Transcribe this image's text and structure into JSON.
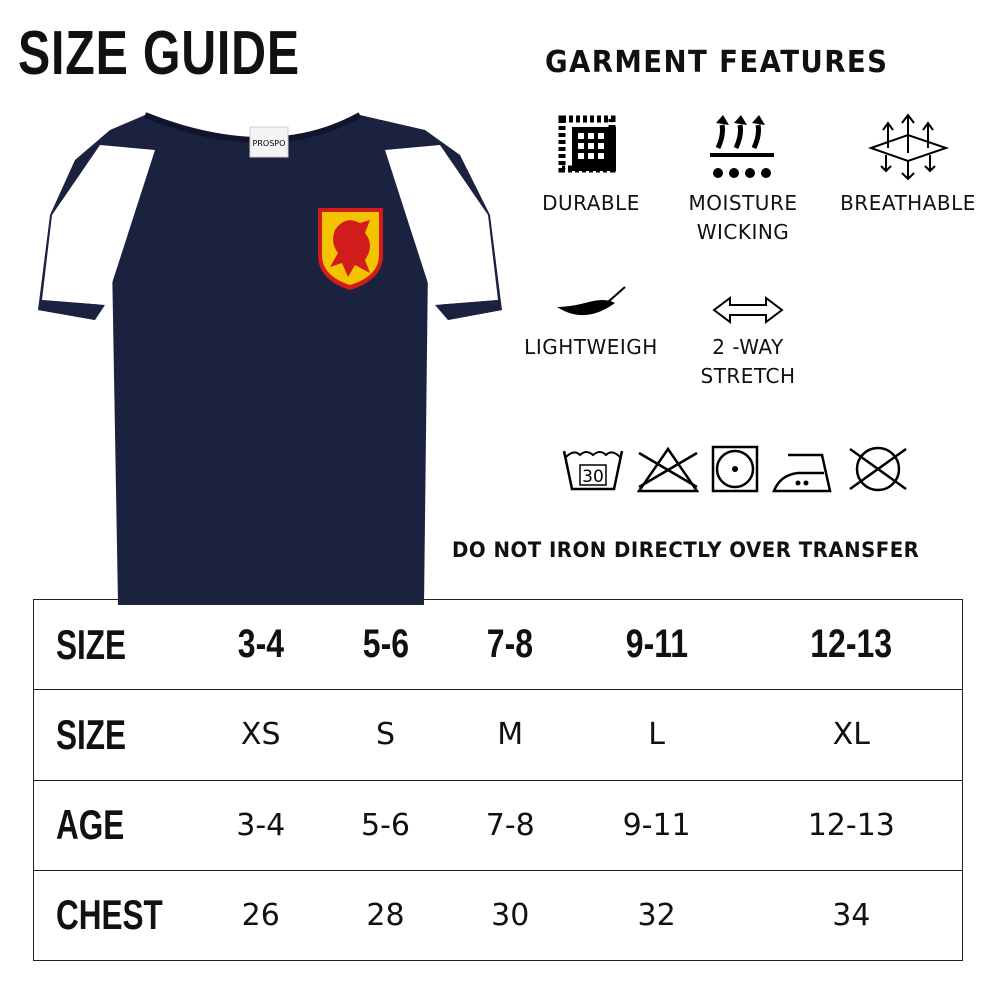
{
  "title": "SIZE GUIDE",
  "shirt": {
    "tag_text": "PROSPO",
    "body_color": "#1b2240",
    "panel_color": "#ffffff",
    "crest_color": "#f5c400",
    "lion_color": "#d11c1c"
  },
  "features_title": "GARMENT FEATURES",
  "features": [
    {
      "label": "DURABLE",
      "icon": "fabric-mesh-icon"
    },
    {
      "label": "MOISTURE WICKING",
      "icon": "moisture-wicking-icon"
    },
    {
      "label": "BREATHABLE",
      "icon": "breathable-icon"
    },
    {
      "label": "LIGHTWEIGH",
      "icon": "feather-icon"
    },
    {
      "label": "2 -WAY STRETCH",
      "icon": "two-way-arrow-icon"
    }
  ],
  "care": {
    "wash_temp": "30",
    "icons": [
      "wash-30-icon",
      "do-not-bleach-icon",
      "tumble-dry-icon",
      "iron-low-icon",
      "do-not-dry-clean-icon"
    ]
  },
  "note": "DO NOT IRON DIRECTLY OVER TRANSFER",
  "table": {
    "header": [
      "SIZE",
      "3-4",
      "5-6",
      "7-8",
      "9-11",
      "12-13"
    ],
    "rows": [
      [
        "SIZE",
        "XS",
        "S",
        "M",
        "L",
        "XL"
      ],
      [
        "AGE",
        "3-4",
        "5-6",
        "7-8",
        "9-11",
        "12-13"
      ],
      [
        "CHEST",
        "26",
        "28",
        "30",
        "32",
        "34"
      ]
    ]
  }
}
